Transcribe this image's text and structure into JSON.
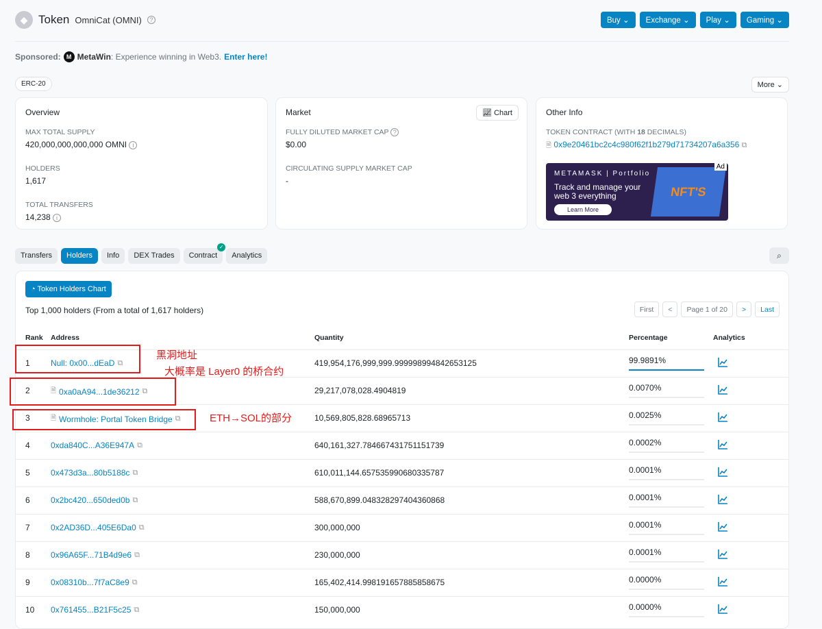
{
  "header": {
    "title": "Token",
    "token_name": "OmniCat (OMNI)",
    "buttons": [
      "Buy",
      "Exchange",
      "Play",
      "Gaming"
    ]
  },
  "sponsored": {
    "label": "Sponsored:",
    "brand": "MetaWin",
    "text": ": Experience winning in Web3.",
    "link": "Enter here!"
  },
  "badge": "ERC-20",
  "more": "More",
  "overview": {
    "title": "Overview",
    "max_supply_label": "MAX TOTAL SUPPLY",
    "max_supply": "420,000,000,000,000 OMNI",
    "holders_label": "HOLDERS",
    "holders": "1,617",
    "transfers_label": "TOTAL TRANSFERS",
    "transfers": "14,238"
  },
  "market": {
    "title": "Market",
    "chart_btn": "Chart",
    "fdmc_label": "FULLY DILUTED MARKET CAP",
    "fdmc": "$0.00",
    "csmc_label": "CIRCULATING SUPPLY MARKET CAP",
    "csmc": "-"
  },
  "other": {
    "title": "Other Info",
    "contract_label_pre": "TOKEN CONTRACT (WITH ",
    "decimals": "18",
    "contract_label_post": " DECIMALS)",
    "contract": "0x9e20461bc2c4c980f62f1b279d71734207a6a356",
    "ad": {
      "badge": "Ad",
      "brand": "METAMASK | Portfolio",
      "text": "Track and manage your web 3 everything",
      "cta": "Learn More",
      "art": "NFT'S"
    }
  },
  "tabs": [
    "Transfers",
    "Holders",
    "Info",
    "DEX Trades",
    "Contract",
    "Analytics"
  ],
  "holders": {
    "chart_btn": "Token Holders Chart",
    "summary": "Top 1,000 holders (From a total of 1,617 holders)",
    "pager": {
      "first": "First",
      "prev": "<",
      "page": "Page 1 of 20",
      "next": ">",
      "last": "Last"
    },
    "columns": [
      "Rank",
      "Address",
      "Quantity",
      "Percentage",
      "Analytics"
    ],
    "rows": [
      {
        "rank": "1",
        "address": "Null: 0x00...dEaD",
        "contract": false,
        "qty": "419,954,176,999,999.999998994842653125",
        "pct": "99.9891%"
      },
      {
        "rank": "2",
        "address": "0xa0aA94...1de36212",
        "contract": true,
        "qty": "29,217,078,028.4904819",
        "pct": "0.0070%"
      },
      {
        "rank": "3",
        "address": "Wormhole: Portal Token Bridge",
        "contract": true,
        "qty": "10,569,805,828.68965713",
        "pct": "0.0025%"
      },
      {
        "rank": "4",
        "address": "0xda840C...A36E947A",
        "contract": false,
        "qty": "640,161,327.784667431751151739",
        "pct": "0.0002%"
      },
      {
        "rank": "5",
        "address": "0x473d3a...80b5188c",
        "contract": false,
        "qty": "610,011,144.657535990680335787",
        "pct": "0.0001%"
      },
      {
        "rank": "6",
        "address": "0x2bc420...650ded0b",
        "contract": false,
        "qty": "588,670,899.048328297404360868",
        "pct": "0.0001%"
      },
      {
        "rank": "7",
        "address": "0x2AD36D...405E6Da0",
        "contract": false,
        "qty": "300,000,000",
        "pct": "0.0001%"
      },
      {
        "rank": "8",
        "address": "0x96A65F...71B4d9e6",
        "contract": false,
        "qty": "230,000,000",
        "pct": "0.0001%"
      },
      {
        "rank": "9",
        "address": "0x08310b...7f7aC8e9",
        "contract": false,
        "qty": "165,402,414.998191657885858675",
        "pct": "0.0000%"
      },
      {
        "rank": "10",
        "address": "0x761455...B21F5c25",
        "contract": false,
        "qty": "150,000,000",
        "pct": "0.0000%"
      }
    ]
  },
  "annotations": {
    "a1": "黑洞地址",
    "a2": "大概率是 Layer0 的桥合约",
    "a3": "ETH→SOL的部分",
    "color": "#e31b1b"
  },
  "accent": "#0784c3"
}
